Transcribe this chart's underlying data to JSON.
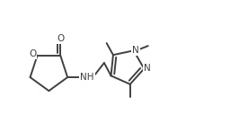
{
  "background_color": "#ffffff",
  "line_color": "#404040",
  "n_color": "#404040",
  "o_color": "#404040",
  "line_width": 1.4,
  "font_size": 7.5,
  "figsize": [
    2.66,
    1.47
  ],
  "dpi": 100,
  "xlim": [
    0.0,
    8.5
  ],
  "ylim": [
    0.0,
    5.0
  ]
}
